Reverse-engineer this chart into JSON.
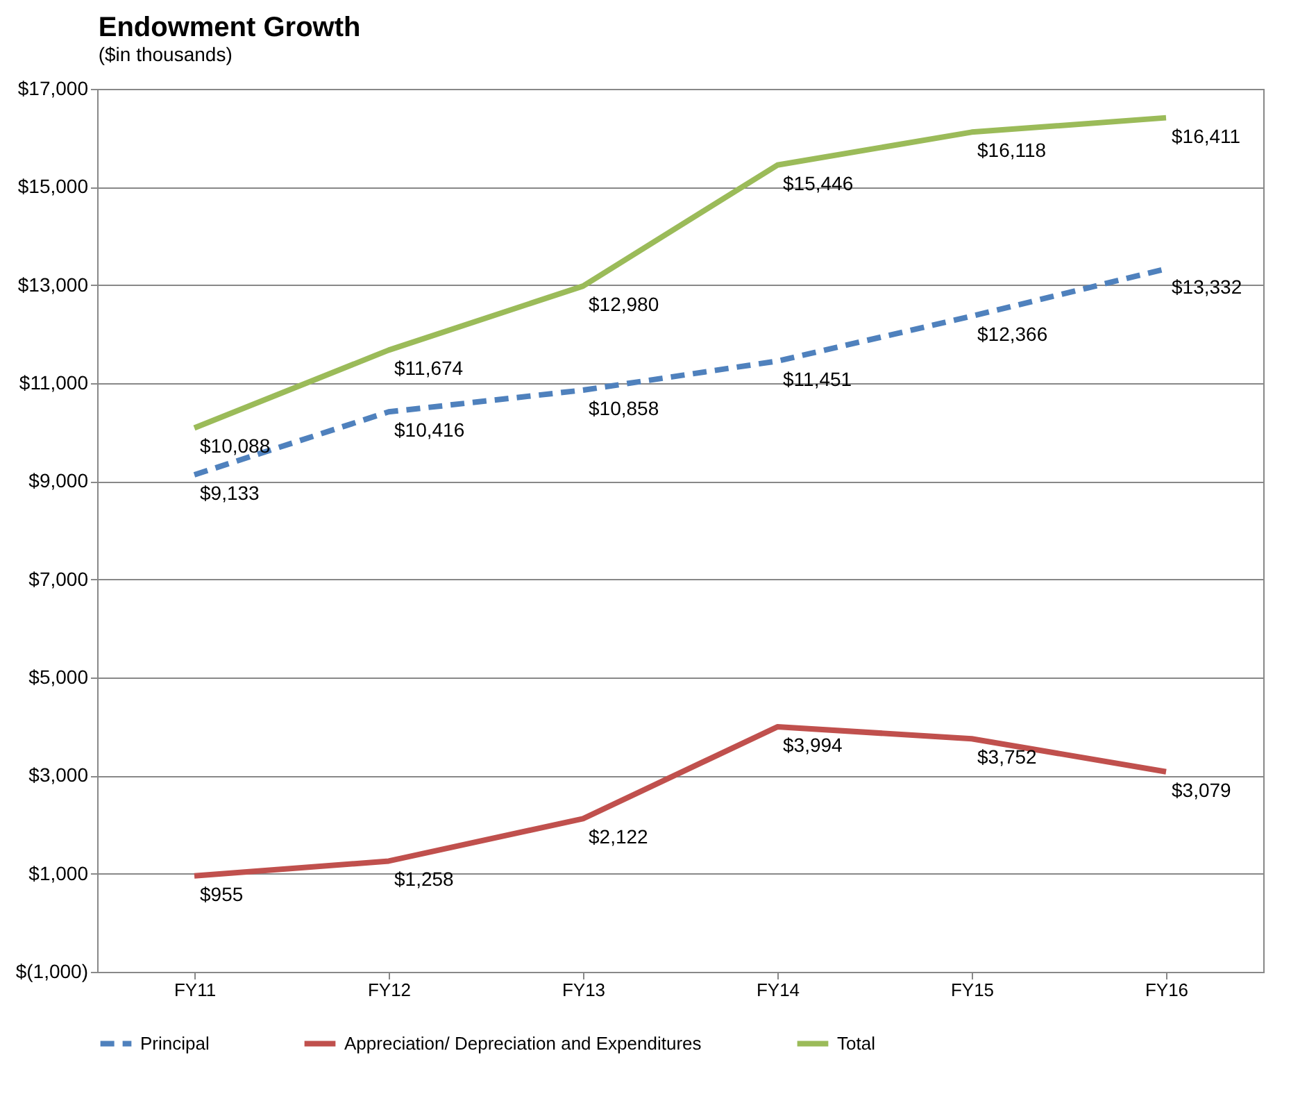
{
  "chart_data": {
    "type": "line",
    "title": "Endowment Growth",
    "subtitle": "($in thousands)",
    "categories": [
      "FY11",
      "FY12",
      "FY13",
      "FY14",
      "FY15",
      "FY16"
    ],
    "series": [
      {
        "name": "Principal",
        "color": "#4f81bd",
        "line_style": "dashed",
        "values": [
          9133,
          10416,
          10858,
          11451,
          12366,
          13332
        ],
        "value_labels": [
          "$9,133",
          "$10,416",
          "$10,858",
          "$11,451",
          "$12,366",
          "$13,332"
        ]
      },
      {
        "name": "Appreciation/ Depreciation and Expenditures",
        "color": "#c0504d",
        "line_style": "solid",
        "values": [
          955,
          1258,
          2122,
          3994,
          3752,
          3079
        ],
        "value_labels": [
          "$955",
          "$1,258",
          "$2,122",
          "$3,994",
          "$3,752",
          "$3,079"
        ]
      },
      {
        "name": "Total",
        "color": "#9bbb59",
        "line_style": "solid",
        "values": [
          10088,
          11674,
          12980,
          15446,
          16118,
          16411
        ],
        "value_labels": [
          "$10,088",
          "$11,674",
          "$12,980",
          "$15,446",
          "$16,118",
          "$16,411"
        ]
      }
    ],
    "ylim": [
      -1000,
      17000
    ],
    "yticks": [
      {
        "value": -1000,
        "label": "$(1,000)"
      },
      {
        "value": 1000,
        "label": "$1,000"
      },
      {
        "value": 3000,
        "label": "$3,000"
      },
      {
        "value": 5000,
        "label": "$5,000"
      },
      {
        "value": 7000,
        "label": "$7,000"
      },
      {
        "value": 9000,
        "label": "$9,000"
      },
      {
        "value": 11000,
        "label": "$11,000"
      },
      {
        "value": 13000,
        "label": "$13,000"
      },
      {
        "value": 15000,
        "label": "$15,000"
      },
      {
        "value": 17000,
        "label": "$17,000"
      }
    ],
    "grid": "y",
    "legend": "bottom",
    "marker": "none"
  }
}
